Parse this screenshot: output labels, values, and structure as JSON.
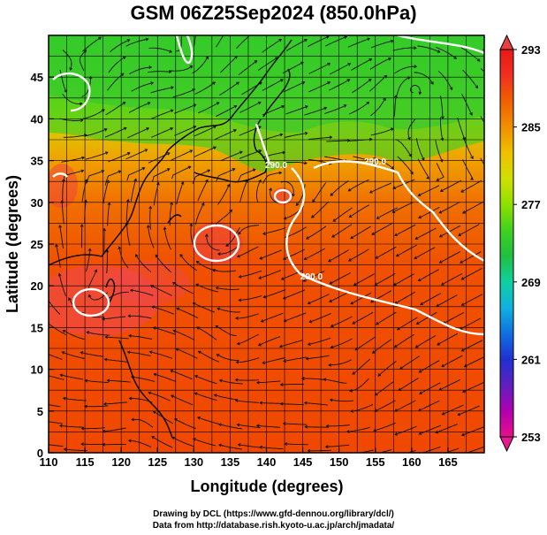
{
  "title": "GSM 06Z25Sep2024 (850.0hPa)",
  "x_axis": {
    "label": "Longitude (degrees)",
    "range": [
      110,
      170
    ],
    "ticks": [
      "110",
      "115",
      "120",
      "125",
      "130",
      "135",
      "140",
      "145",
      "150",
      "155",
      "160",
      "165"
    ]
  },
  "y_axis": {
    "label": "Latitude  (degrees)",
    "range": [
      0,
      50
    ],
    "ticks": [
      "0",
      "5",
      "10",
      "15",
      "20",
      "25",
      "30",
      "35",
      "40",
      "45"
    ]
  },
  "colorbar": {
    "min": 253,
    "max": 293,
    "labels": [
      "293",
      "285",
      "277",
      "269",
      "261",
      "253"
    ],
    "colors": [
      "#e8108a",
      "#b000b0",
      "#6020c0",
      "#2030d0",
      "#1070e0",
      "#10b0e0",
      "#10d0a0",
      "#20c040",
      "#40d020",
      "#90e000",
      "#d0e000",
      "#f0c000",
      "#f09000",
      "#f06000",
      "#f03020",
      "#e81818"
    ]
  },
  "contour_labels": [
    "290.0",
    "290.0",
    "290.0"
  ],
  "credits": {
    "line1": "Drawing by DCL (https://www.gfd-dennou.org/library/dcl/)",
    "line2": "Data from http://database.rish.kyoto-u.ac.jp/arch/jmadata/"
  }
}
